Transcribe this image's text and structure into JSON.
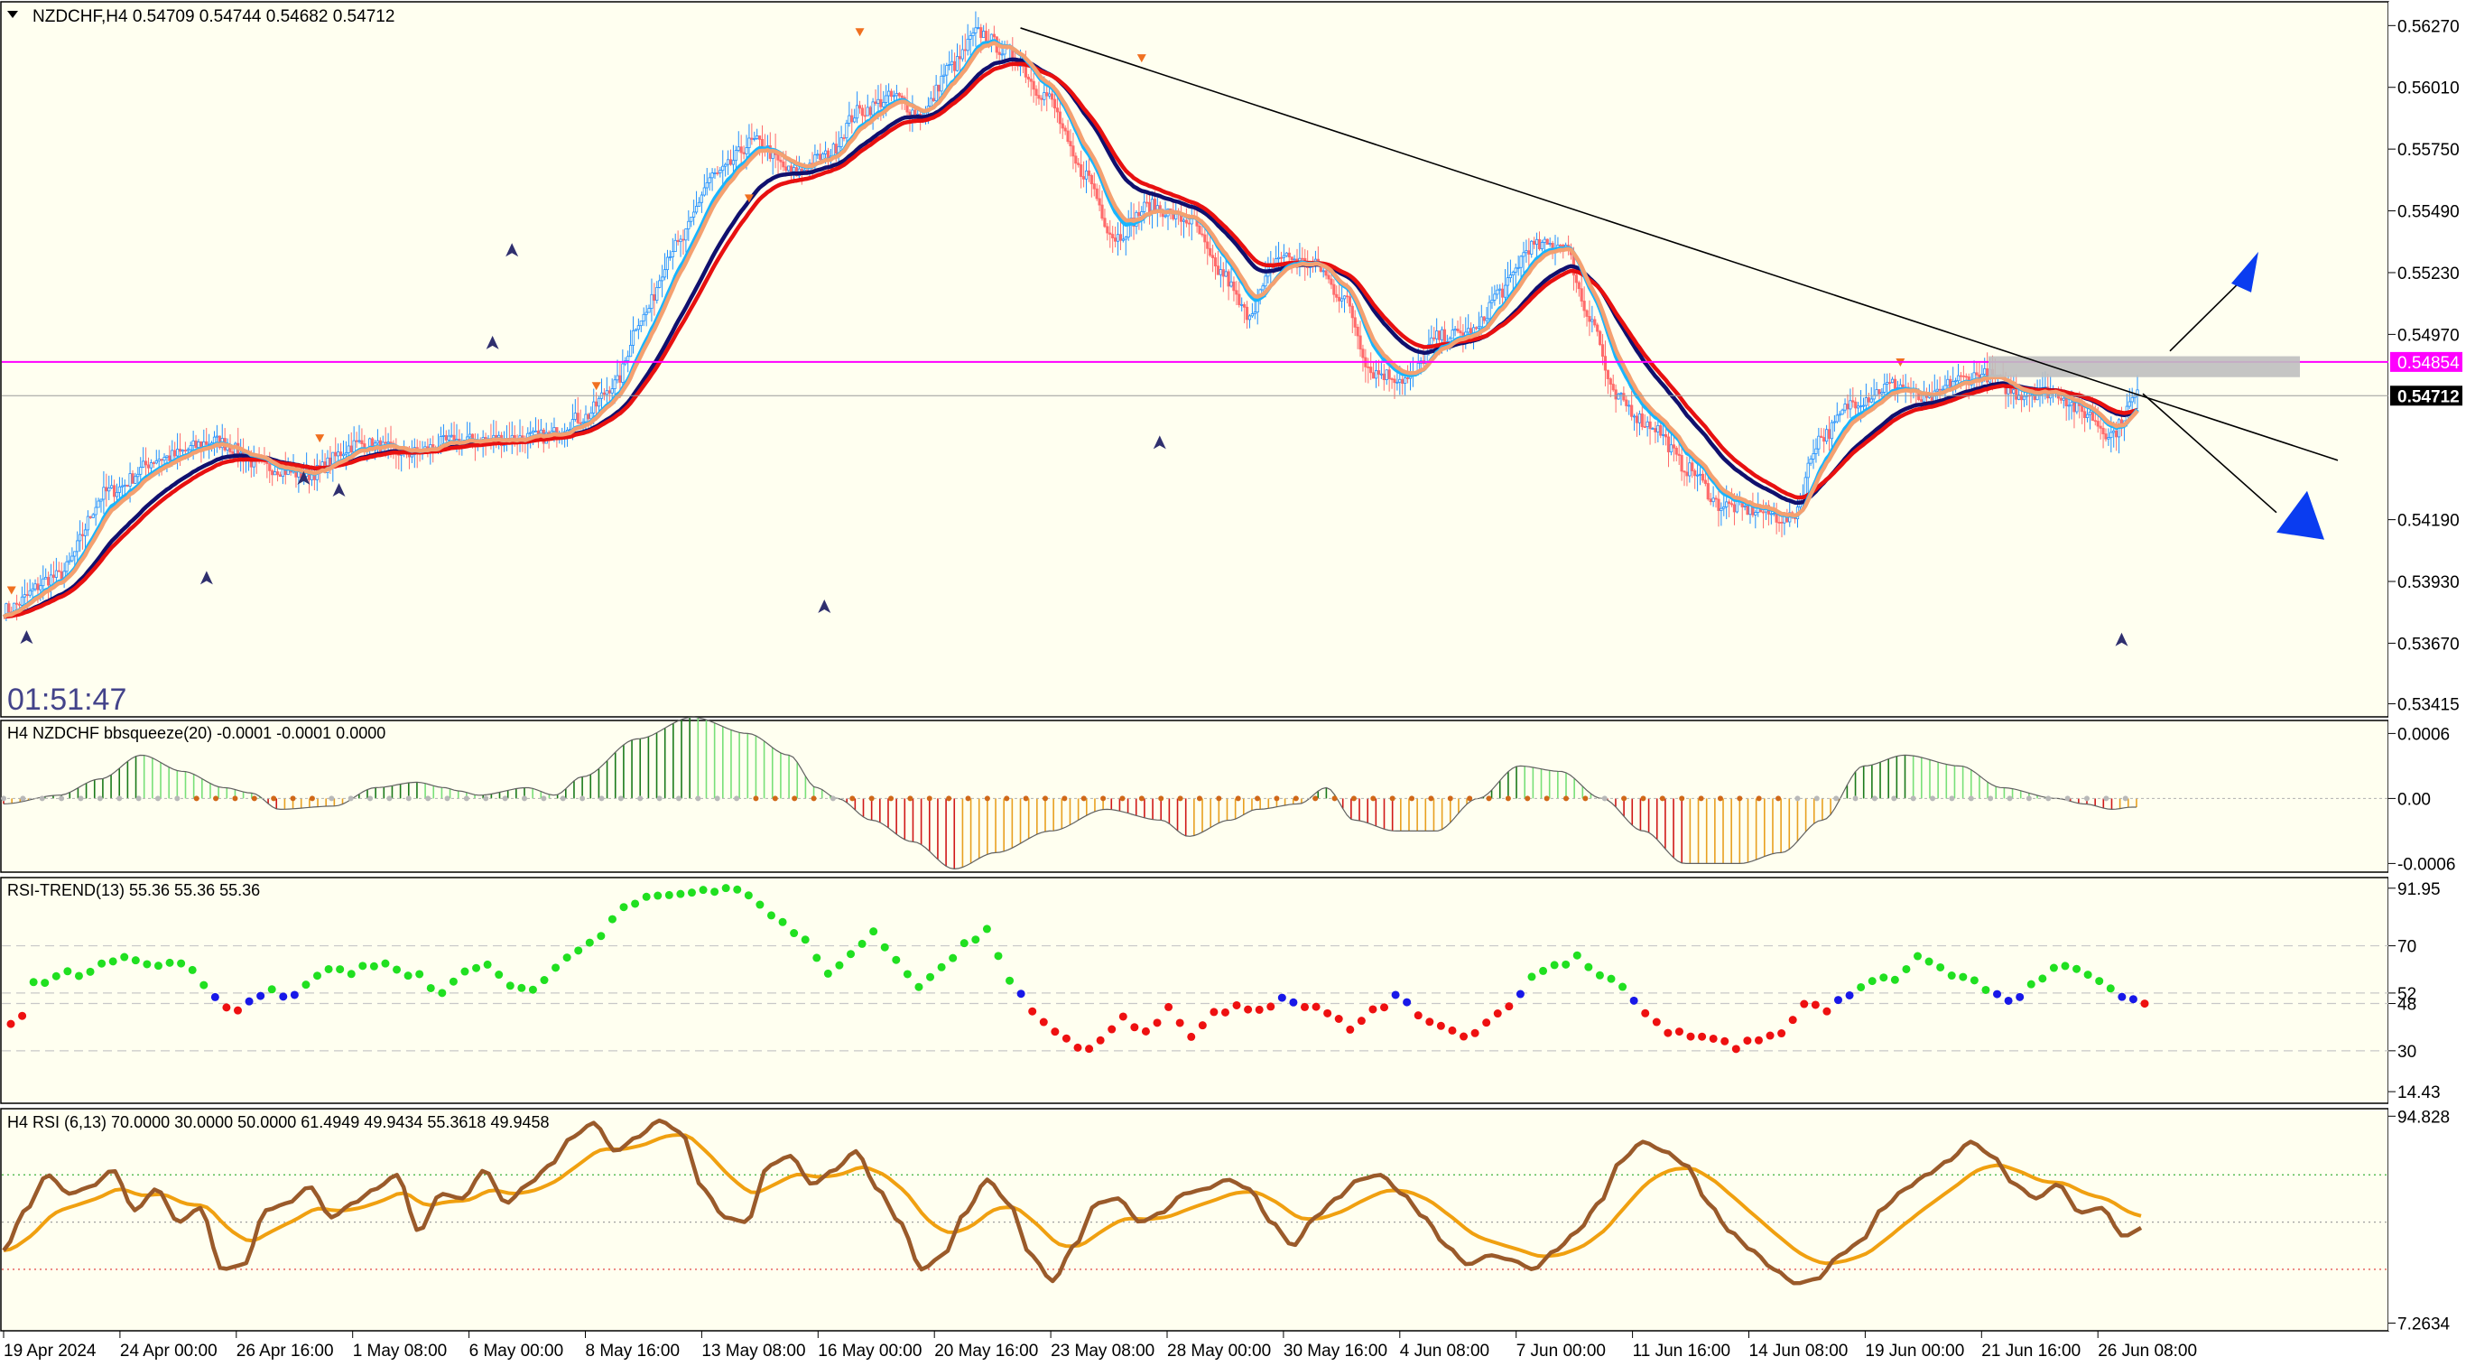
{
  "symbol_info": "NZDCHF,H4  0.54709 0.54744 0.54682 0.54712",
  "countdown": "01:51:47",
  "colors": {
    "bg": "#fffff0",
    "candle_up": "#1e8fff",
    "candle_down": "#ff6b6b",
    "ma_fast": "#19b5ff",
    "ma_navy": "#10106e",
    "ma_orange": "#f4a070",
    "ma_red": "#e81010",
    "level": "#ff00ff",
    "box": "#bfbfbf",
    "arrow": "#0a3cf0",
    "trend": "#000000"
  },
  "price_panel": {
    "ticks": [
      "0.56270",
      "0.56010",
      "0.55750",
      "0.55490",
      "0.55230",
      "0.54970",
      "0.54190",
      "0.53930",
      "0.53670",
      "0.53415"
    ],
    "ymin": 0.5336,
    "ymax": 0.5637,
    "level_price": 0.54854,
    "level_label": "0.54854",
    "current_price": 0.54712,
    "current_label": "0.54712"
  },
  "squeeze_panel": {
    "title": "H4 NZDCHF bbsqueeze(20) -0.0001 -0.0001 0.0000",
    "ticks": [
      "0.0006",
      "0.00",
      "-0.0006"
    ],
    "ymin": -0.00068,
    "ymax": 0.00072
  },
  "rsi_trend_panel": {
    "title": "RSI-TREND(13) 55.36 55.36 55.36",
    "ticks": [
      "91.95",
      "70",
      "52",
      "48",
      "30",
      "14.43"
    ],
    "levels": [
      70,
      52,
      48,
      30
    ],
    "ymin": 10,
    "ymax": 96
  },
  "rsi_panel": {
    "title": "H4 RSI  (6,13) 70.0000 30.0000 50.0000 61.4949 49.9434 55.3618 49.9458",
    "ticks": [
      "94.828",
      "7.2634"
    ],
    "levels": [
      70,
      50,
      30
    ],
    "ymin": 4,
    "ymax": 98
  },
  "x_axis": {
    "labels": [
      "19 Apr 2024",
      "24 Apr 00:00",
      "26 Apr 16:00",
      "1 May 08:00",
      "6 May 00:00",
      "8 May 16:00",
      "13 May 08:00",
      "16 May 00:00",
      "20 May 16:00",
      "23 May 08:00",
      "28 May 00:00",
      "30 May 16:00",
      "4 Jun 08:00",
      "7 Jun 00:00",
      "11 Jun 16:00",
      "14 Jun 08:00",
      "19 Jun 00:00",
      "21 Jun 16:00",
      "26 Jun 08:00"
    ]
  },
  "chart_data": {
    "type": "line",
    "x": [
      "19 Apr 2024",
      "24 Apr 00:00",
      "26 Apr 16:00",
      "1 May 08:00",
      "6 May 00:00",
      "8 May 16:00",
      "13 May 08:00",
      "16 May 00:00",
      "20 May 16:00",
      "23 May 08:00",
      "28 May 00:00",
      "30 May 16:00",
      "4 Jun 08:00",
      "7 Jun 00:00",
      "11 Jun 16:00",
      "14 Jun 08:00",
      "19 Jun 00:00",
      "21 Jun 16:00",
      "26 Jun 08:00"
    ],
    "price_anchors": [
      [
        0,
        0.5381
      ],
      [
        20,
        0.5395
      ],
      [
        40,
        0.5431
      ],
      [
        60,
        0.5445
      ],
      [
        80,
        0.5452
      ],
      [
        100,
        0.5441
      ],
      [
        115,
        0.5438
      ],
      [
        135,
        0.5451
      ],
      [
        155,
        0.5447
      ],
      [
        170,
        0.5452
      ],
      [
        190,
        0.5453
      ],
      [
        205,
        0.5454
      ],
      [
        220,
        0.5462
      ],
      [
        232,
        0.5476
      ],
      [
        242,
        0.5504
      ],
      [
        255,
        0.5534
      ],
      [
        270,
        0.5564
      ],
      [
        285,
        0.5578
      ],
      [
        300,
        0.5565
      ],
      [
        312,
        0.5572
      ],
      [
        325,
        0.5591
      ],
      [
        338,
        0.5597
      ],
      [
        348,
        0.5589
      ],
      [
        360,
        0.561
      ],
      [
        370,
        0.5624
      ],
      [
        382,
        0.5615
      ],
      [
        395,
        0.5598
      ],
      [
        410,
        0.5565
      ],
      [
        422,
        0.5538
      ],
      [
        435,
        0.5551
      ],
      [
        450,
        0.5545
      ],
      [
        462,
        0.5523
      ],
      [
        472,
        0.5506
      ],
      [
        485,
        0.553
      ],
      [
        498,
        0.5526
      ],
      [
        508,
        0.5513
      ],
      [
        520,
        0.5481
      ],
      [
        533,
        0.5478
      ],
      [
        545,
        0.5496
      ],
      [
        558,
        0.5498
      ],
      [
        568,
        0.5515
      ],
      [
        580,
        0.5534
      ],
      [
        592,
        0.5535
      ],
      [
        602,
        0.5505
      ],
      [
        612,
        0.547
      ],
      [
        625,
        0.5459
      ],
      [
        640,
        0.544
      ],
      [
        652,
        0.5425
      ],
      [
        665,
        0.5423
      ],
      [
        678,
        0.5419
      ],
      [
        690,
        0.5454
      ],
      [
        703,
        0.5469
      ],
      [
        718,
        0.5476
      ],
      [
        730,
        0.5469
      ],
      [
        742,
        0.5478
      ],
      [
        752,
        0.548
      ],
      [
        765,
        0.5472
      ],
      [
        778,
        0.5473
      ],
      [
        790,
        0.5464
      ],
      [
        800,
        0.5455
      ],
      [
        810,
        0.5471
      ]
    ],
    "squeeze_anchors": [
      [
        0,
        -5e-05
      ],
      [
        40,
        3e-05
      ],
      [
        70,
        0.00018
      ],
      [
        100,
        0.0004
      ],
      [
        130,
        0.00025
      ],
      [
        160,
        0.0001
      ],
      [
        180,
        5e-05
      ],
      [
        200,
        -0.0001
      ],
      [
        240,
        -7e-05
      ],
      [
        270,
        0.0001
      ],
      [
        300,
        0.00015
      ],
      [
        320,
        0.0001
      ],
      [
        330,
        7e-05
      ],
      [
        345,
        3e-05
      ],
      [
        380,
        0.0001
      ],
      [
        400,
        3e-05
      ],
      [
        420,
        0.0002
      ],
      [
        460,
        0.00055
      ],
      [
        500,
        0.00075
      ],
      [
        540,
        0.0006
      ],
      [
        570,
        0.0004
      ],
      [
        590,
        0.0001
      ],
      [
        605,
        0.0
      ],
      [
        630,
        -0.0002
      ],
      [
        660,
        -0.0004
      ],
      [
        690,
        -0.00065
      ],
      [
        720,
        -0.0005
      ],
      [
        760,
        -0.0003
      ],
      [
        800,
        -0.0001
      ],
      [
        840,
        -0.0002
      ],
      [
        860,
        -0.00035
      ],
      [
        890,
        -0.0002
      ],
      [
        910,
        -0.0001
      ],
      [
        940,
        -5e-05
      ],
      [
        960,
        0.0001
      ],
      [
        980,
        -0.0002
      ],
      [
        1010,
        -0.0003
      ],
      [
        1040,
        -0.0003
      ],
      [
        1070,
        0.0
      ],
      [
        1100,
        0.0003
      ],
      [
        1130,
        0.00025
      ],
      [
        1160,
        0.0
      ],
      [
        1190,
        -0.0003
      ],
      [
        1220,
        -0.0006
      ],
      [
        1260,
        -0.0006
      ],
      [
        1290,
        -0.0005
      ],
      [
        1320,
        -0.0002
      ],
      [
        1350,
        0.0003
      ],
      [
        1380,
        0.0004
      ],
      [
        1420,
        0.0003
      ],
      [
        1450,
        0.0001
      ],
      [
        1490,
        0.0
      ],
      [
        1510,
        -5e-05
      ],
      [
        1530,
        -0.0001
      ],
      [
        1545,
        -8e-05
      ]
    ],
    "rsi_trend_anchors": [
      [
        0,
        40
      ],
      [
        10,
        44
      ],
      [
        20,
        55
      ],
      [
        40,
        58
      ],
      [
        60,
        60
      ],
      [
        80,
        63
      ],
      [
        100,
        66
      ],
      [
        120,
        62
      ],
      [
        140,
        64
      ],
      [
        160,
        62
      ],
      [
        180,
        50
      ],
      [
        200,
        46
      ],
      [
        220,
        52
      ],
      [
        235,
        54
      ],
      [
        245,
        48
      ],
      [
        260,
        55
      ],
      [
        280,
        62
      ],
      [
        300,
        60
      ],
      [
        320,
        63
      ],
      [
        340,
        62
      ],
      [
        360,
        58
      ],
      [
        380,
        52
      ],
      [
        400,
        60
      ],
      [
        420,
        63
      ],
      [
        440,
        56
      ],
      [
        460,
        52
      ],
      [
        480,
        62
      ],
      [
        500,
        68
      ],
      [
        520,
        75
      ],
      [
        540,
        85
      ],
      [
        560,
        90
      ],
      [
        580,
        88
      ],
      [
        600,
        90
      ],
      [
        620,
        91
      ],
      [
        640,
        92
      ],
      [
        660,
        86
      ],
      [
        680,
        78
      ],
      [
        700,
        72
      ],
      [
        720,
        58
      ],
      [
        740,
        68
      ],
      [
        760,
        74
      ],
      [
        780,
        66
      ],
      [
        800,
        55
      ],
      [
        820,
        62
      ],
      [
        840,
        70
      ],
      [
        860,
        75
      ],
      [
        880,
        58
      ],
      [
        900,
        46
      ],
      [
        920,
        38
      ],
      [
        940,
        30
      ],
      [
        960,
        34
      ],
      [
        980,
        42
      ],
      [
        1000,
        38
      ],
      [
        1020,
        46
      ],
      [
        1040,
        36
      ],
      [
        1060,
        44
      ],
      [
        1080,
        48
      ],
      [
        1100,
        46
      ],
      [
        1120,
        50
      ],
      [
        1140,
        48
      ],
      [
        1160,
        44
      ],
      [
        1180,
        38
      ],
      [
        1200,
        46
      ],
      [
        1220,
        50
      ],
      [
        1240,
        44
      ],
      [
        1260,
        40
      ],
      [
        1280,
        36
      ],
      [
        1300,
        40
      ],
      [
        1320,
        48
      ],
      [
        1340,
        58
      ],
      [
        1360,
        62
      ],
      [
        1380,
        66
      ],
      [
        1400,
        60
      ],
      [
        1420,
        54
      ],
      [
        1440,
        44
      ],
      [
        1460,
        36
      ],
      [
        1480,
        36
      ],
      [
        1500,
        34
      ],
      [
        1520,
        32
      ],
      [
        1540,
        34
      ],
      [
        1560,
        36
      ],
      [
        1580,
        48
      ],
      [
        1600,
        46
      ],
      [
        1620,
        52
      ],
      [
        1640,
        56
      ],
      [
        1660,
        58
      ],
      [
        1680,
        66
      ],
      [
        1700,
        62
      ],
      [
        1720,
        58
      ],
      [
        1740,
        54
      ],
      [
        1760,
        48
      ],
      [
        1780,
        54
      ],
      [
        1800,
        62
      ],
      [
        1820,
        60
      ],
      [
        1840,
        56
      ],
      [
        1860,
        52
      ],
      [
        1880,
        48
      ]
    ],
    "rsi_anchors": [
      [
        0,
        38
      ],
      [
        20,
        55
      ],
      [
        40,
        70
      ],
      [
        60,
        62
      ],
      [
        80,
        65
      ],
      [
        100,
        72
      ],
      [
        120,
        55
      ],
      [
        140,
        64
      ],
      [
        160,
        50
      ],
      [
        180,
        56
      ],
      [
        200,
        30
      ],
      [
        220,
        32
      ],
      [
        240,
        55
      ],
      [
        260,
        58
      ],
      [
        280,
        65
      ],
      [
        300,
        52
      ],
      [
        320,
        58
      ],
      [
        340,
        64
      ],
      [
        360,
        70
      ],
      [
        380,
        46
      ],
      [
        400,
        62
      ],
      [
        420,
        60
      ],
      [
        440,
        72
      ],
      [
        460,
        58
      ],
      [
        480,
        66
      ],
      [
        500,
        74
      ],
      [
        520,
        86
      ],
      [
        540,
        92
      ],
      [
        560,
        80
      ],
      [
        580,
        86
      ],
      [
        600,
        93
      ],
      [
        620,
        88
      ],
      [
        640,
        64
      ],
      [
        660,
        52
      ],
      [
        680,
        50
      ],
      [
        700,
        74
      ],
      [
        720,
        78
      ],
      [
        740,
        66
      ],
      [
        760,
        72
      ],
      [
        780,
        80
      ],
      [
        800,
        64
      ],
      [
        820,
        50
      ],
      [
        840,
        30
      ],
      [
        860,
        36
      ],
      [
        880,
        54
      ],
      [
        900,
        68
      ],
      [
        920,
        58
      ],
      [
        940,
        36
      ],
      [
        960,
        25
      ],
      [
        980,
        40
      ],
      [
        1000,
        58
      ],
      [
        1020,
        60
      ],
      [
        1040,
        50
      ],
      [
        1060,
        54
      ],
      [
        1080,
        62
      ],
      [
        1100,
        64
      ],
      [
        1120,
        68
      ],
      [
        1140,
        64
      ],
      [
        1160,
        50
      ],
      [
        1180,
        40
      ],
      [
        1200,
        52
      ],
      [
        1220,
        60
      ],
      [
        1240,
        68
      ],
      [
        1260,
        70
      ],
      [
        1280,
        62
      ],
      [
        1300,
        52
      ],
      [
        1320,
        40
      ],
      [
        1340,
        32
      ],
      [
        1360,
        36
      ],
      [
        1380,
        34
      ],
      [
        1400,
        30
      ],
      [
        1420,
        38
      ],
      [
        1440,
        46
      ],
      [
        1460,
        58
      ],
      [
        1480,
        76
      ],
      [
        1500,
        84
      ],
      [
        1520,
        80
      ],
      [
        1540,
        74
      ],
      [
        1560,
        58
      ],
      [
        1580,
        46
      ],
      [
        1600,
        38
      ],
      [
        1620,
        30
      ],
      [
        1640,
        24
      ],
      [
        1660,
        26
      ],
      [
        1680,
        36
      ],
      [
        1700,
        42
      ],
      [
        1720,
        56
      ],
      [
        1740,
        64
      ],
      [
        1760,
        70
      ],
      [
        1780,
        76
      ],
      [
        1800,
        84
      ],
      [
        1820,
        78
      ],
      [
        1840,
        66
      ],
      [
        1860,
        60
      ],
      [
        1880,
        66
      ],
      [
        1900,
        54
      ],
      [
        1920,
        56
      ],
      [
        1940,
        44
      ],
      [
        1960,
        48
      ]
    ]
  }
}
